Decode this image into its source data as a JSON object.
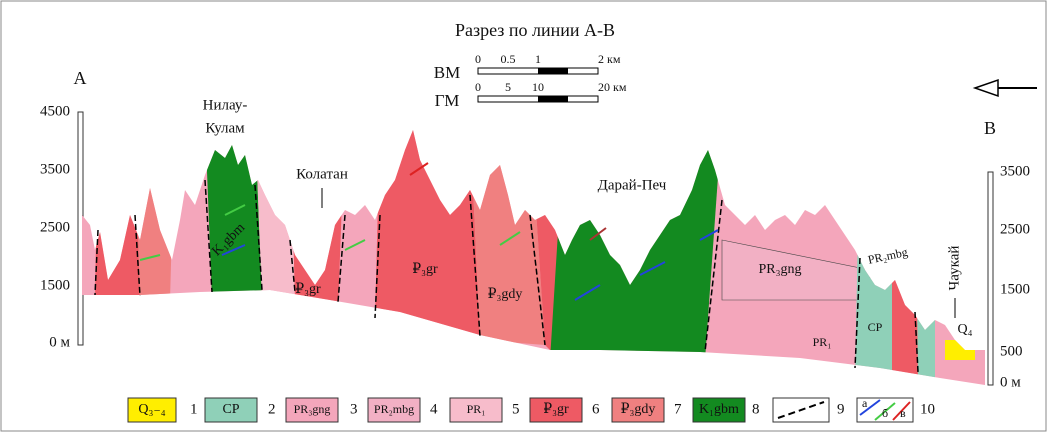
{
  "title": "Разрез по линии А-В",
  "points": {
    "start": "А",
    "end": "В"
  },
  "scales": [
    {
      "name": "ВМ",
      "ticks": [
        "0",
        "0.5",
        "1",
        "2 км"
      ]
    },
    {
      "name": "ГМ",
      "ticks": [
        "0",
        "5",
        "10",
        "20 км"
      ]
    }
  ],
  "left_axis": [
    "4500",
    "3500",
    "2500",
    "1500",
    "0 м"
  ],
  "right_axis": [
    "3500",
    "2500",
    "1500",
    "500",
    "0 м"
  ],
  "places": [
    "Нилау-",
    "Кулам",
    "Колатан",
    "Дарай-Печ",
    "Чаукай"
  ],
  "section_labels": [
    "K₁gbm",
    "₽₃gr",
    "₽₃gr",
    "₽₃gdy",
    "PR₃gng",
    "PR₂mbg",
    "PR₁",
    "CP",
    "Q₄"
  ],
  "legend": [
    {
      "code": "Q₃₋₄",
      "number": "1"
    },
    {
      "code": "CP",
      "number": "2"
    },
    {
      "code": "PR₃gng",
      "number": "3"
    },
    {
      "code": "PR₂mbg",
      "number": "4"
    },
    {
      "code": "PR₁",
      "number": "5"
    },
    {
      "code": "₽₃gr",
      "number": "6"
    },
    {
      "code": "₽₃gdy",
      "number": "7"
    },
    {
      "code": "K₁gbm",
      "number": "8"
    },
    {
      "number": "9"
    },
    {
      "marks": [
        "а",
        "б",
        "в"
      ],
      "number": "10"
    }
  ]
}
